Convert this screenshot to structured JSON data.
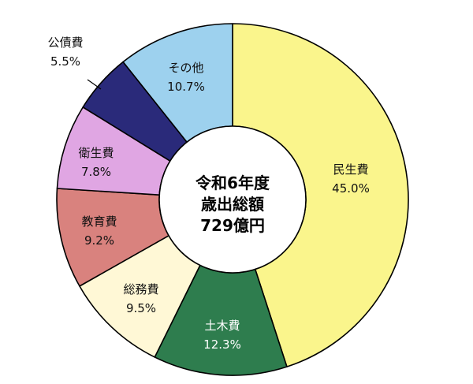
{
  "chart_data": {
    "type": "pie",
    "title": "",
    "center_label": [
      "令和6年度",
      "歳出総額",
      "729億円"
    ],
    "start": "12 o'clock",
    "direction": "clockwise",
    "donut": true,
    "slices": [
      {
        "label": "民生費",
        "value": 45.0,
        "value_label": "45.0%",
        "color": "#FAF58C"
      },
      {
        "label": "土木費",
        "value": 12.3,
        "value_label": "12.3%",
        "color": "#2E7D4E"
      },
      {
        "label": "総務費",
        "value": 9.5,
        "value_label": "9.5%",
        "color": "#FFF8D6"
      },
      {
        "label": "教育費",
        "value": 9.2,
        "value_label": "9.2%",
        "color": "#D9827E"
      },
      {
        "label": "衛生費",
        "value": 7.8,
        "value_label": "7.8%",
        "color": "#E0A6E3"
      },
      {
        "label": "公債費",
        "value": 5.5,
        "value_label": "5.5%",
        "color": "#2A2A7A"
      },
      {
        "label": "その他",
        "value": 10.7,
        "value_label": "10.7%",
        "color": "#9DD1EE"
      }
    ]
  }
}
